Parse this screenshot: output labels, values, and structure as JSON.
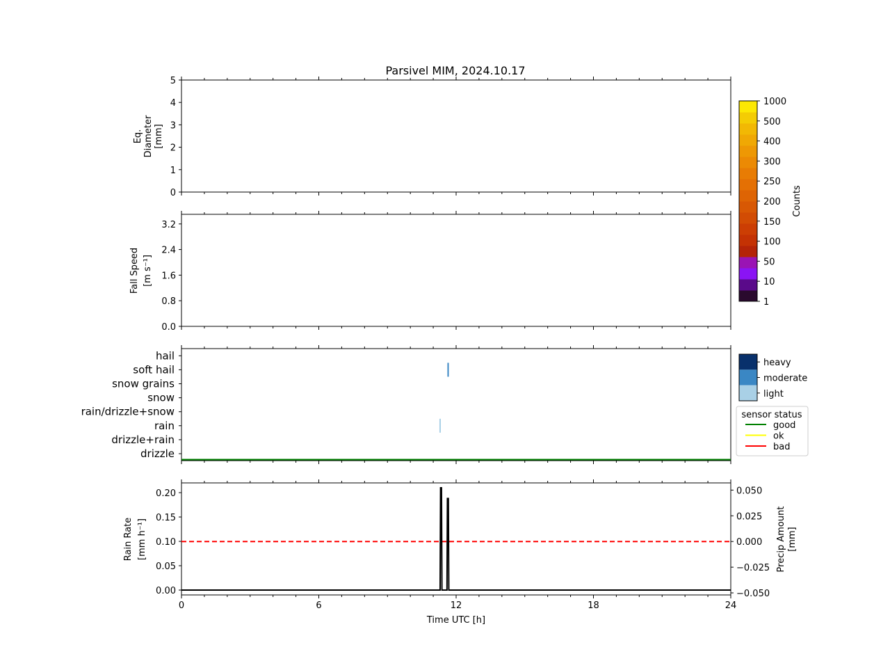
{
  "title": "Parsivel MIM, 2024.10.17",
  "xlabel": "Time UTC [h]",
  "chart_data": [
    {
      "type": "heatmap",
      "panel": "diameter",
      "ylabel_lines": [
        "Eq.",
        "Diameter",
        "[mm]"
      ],
      "xlim": [
        0,
        24
      ],
      "ylim": [
        0,
        5
      ],
      "yticks": [
        0,
        1,
        2,
        3,
        4,
        5
      ],
      "values": []
    },
    {
      "type": "heatmap",
      "panel": "fall_speed",
      "ylabel_lines": [
        "Fall Speed",
        "[m s⁻¹]"
      ],
      "xlim": [
        0,
        24
      ],
      "ylim": [
        0,
        3.5
      ],
      "yticks": [
        "0.0",
        "0.8",
        "1.6",
        "2.4",
        "3.2"
      ],
      "values": []
    },
    {
      "type": "scatter",
      "panel": "precip_type",
      "categories": [
        "drizzle",
        "drizzle+rain",
        "rain",
        "rain/drizzle+snow",
        "snow",
        "snow grains",
        "soft hail",
        "hail"
      ],
      "events": [
        {
          "time": 11.3,
          "category": "rain",
          "intensity": "light"
        },
        {
          "time": 11.65,
          "category": "soft hail",
          "intensity": "moderate"
        }
      ],
      "sensor_status": {
        "value": "good",
        "from": 0,
        "to": 24
      }
    },
    {
      "type": "line",
      "panel": "rain_rate",
      "ylabel_left_lines": [
        "Rain Rate",
        "[mm h⁻¹]"
      ],
      "ylabel_right_lines": [
        "Precip Amount",
        "[mm]"
      ],
      "xlim": [
        0,
        24
      ],
      "ylim_left": [
        -0.01,
        0.22
      ],
      "ylim_right": [
        -0.052,
        0.057
      ],
      "yticks_left": [
        "0.00",
        "0.05",
        "0.10",
        "0.15",
        "0.20"
      ],
      "yticks_right": [
        "−0.050",
        "−0.025",
        "0.000",
        "0.025",
        "0.050"
      ],
      "xticks": [
        0,
        6,
        12,
        18,
        24
      ],
      "series": [
        {
          "role": "rain_rate",
          "x": [
            0,
            11.3,
            11.32,
            11.36,
            11.38,
            11.6,
            11.62,
            11.66,
            11.68,
            24
          ],
          "y": [
            0,
            0,
            0.21,
            0.21,
            0,
            0,
            0.188,
            0.188,
            0,
            0
          ]
        },
        {
          "role": "precip_amount",
          "x": [
            0,
            24
          ],
          "y": [
            0,
            0
          ]
        }
      ]
    }
  ],
  "colorbar": {
    "label": "Counts",
    "tick_labels": [
      "1",
      "10",
      "50",
      "100",
      "150",
      "200",
      "250",
      "300",
      "400",
      "500",
      "1000"
    ],
    "colors": [
      "#2a0a2e",
      "#5a0a8a",
      "#8a14f4",
      "#9a14b4",
      "#b42408",
      "#c43204",
      "#cc3e04",
      "#d24c04",
      "#d85804",
      "#de6404",
      "#e47004",
      "#e87c04",
      "#ec8a04",
      "#ee9804",
      "#f0a804",
      "#f2b804",
      "#f4cc04",
      "#fce804"
    ]
  },
  "intensity_legend": {
    "labels": [
      "heavy",
      "moderate",
      "light"
    ],
    "colors": [
      "#08306b",
      "#3a87c4",
      "#a9d0e6"
    ]
  },
  "status_legend": {
    "title": "sensor status",
    "items": [
      {
        "label": "good",
        "color": "#008000"
      },
      {
        "label": "ok",
        "color": "#ffff00"
      },
      {
        "label": "bad",
        "color": "#ff0000"
      }
    ]
  },
  "colors": {
    "dashed_line": "#ff0000",
    "rain_line": "#000000"
  }
}
